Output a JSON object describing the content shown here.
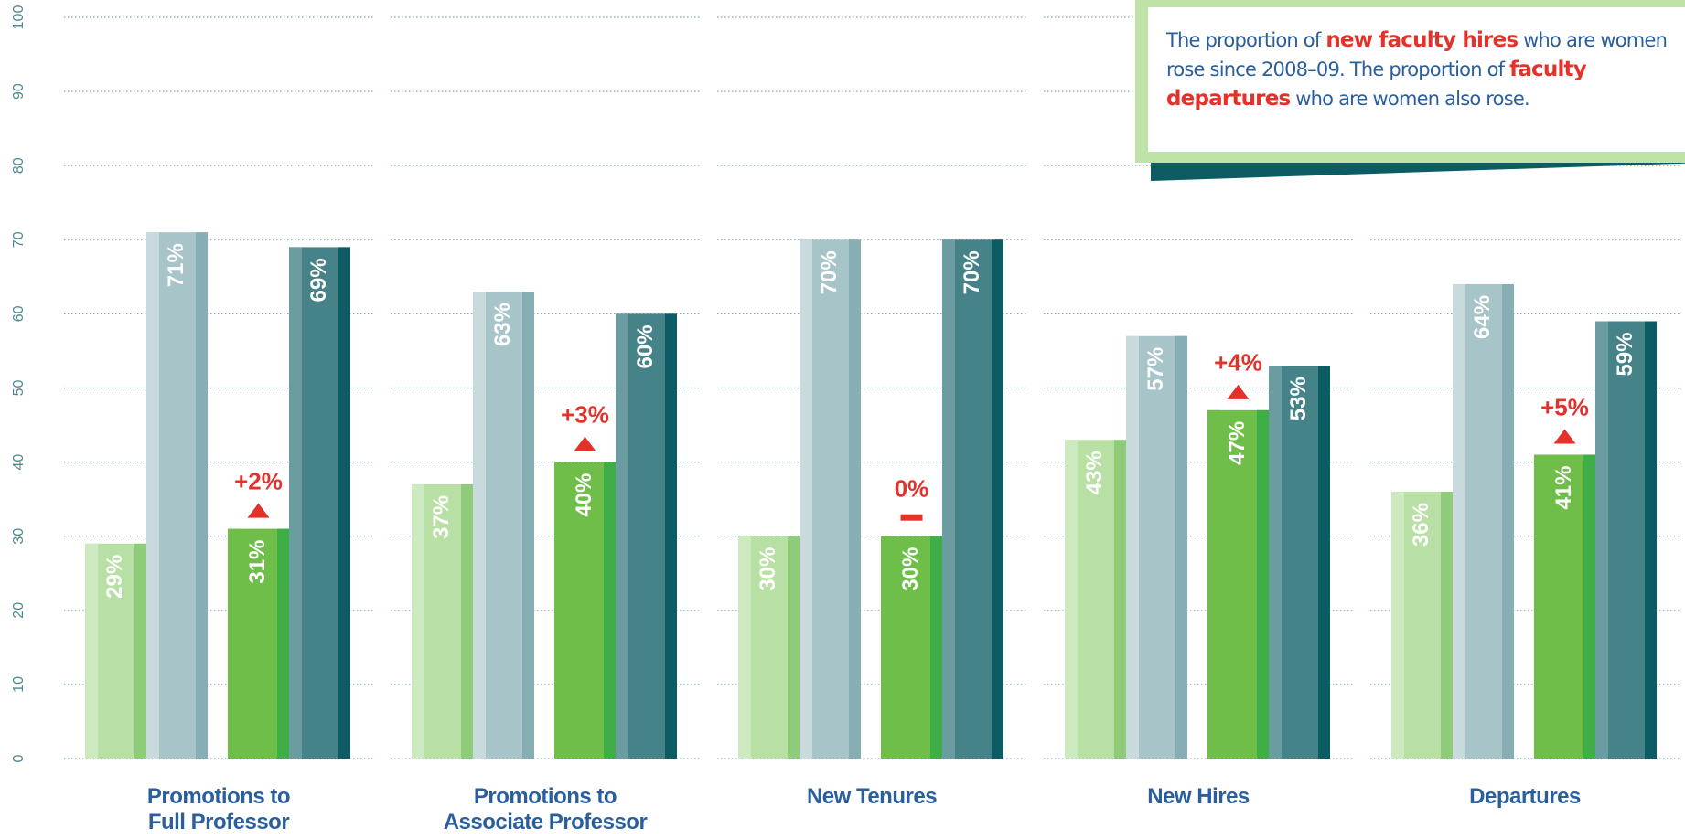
{
  "chart_data": {
    "type": "bar",
    "categories": [
      "Promotions to\nFull Professor",
      "Promotions to\nAssociate Professor",
      "New Tenures",
      "New Hires",
      "Departures"
    ],
    "series": [
      {
        "color": "#b8e0a5",
        "values": [
          29,
          37,
          30,
          43,
          36
        ],
        "value_labels": [
          "29%",
          "37%",
          "30%",
          "43%",
          "36%"
        ]
      },
      {
        "color": "#a7c4c8",
        "values": [
          71,
          63,
          70,
          57,
          64
        ],
        "value_labels": [
          "71%",
          "63%",
          "70%",
          "57%",
          "64%"
        ]
      },
      {
        "color": "#6fbe4a",
        "values": [
          31,
          40,
          30,
          47,
          41
        ],
        "value_labels": [
          "31%",
          "40%",
          "30%",
          "47%",
          "41%"
        ]
      },
      {
        "color": "#468389",
        "values": [
          69,
          60,
          70,
          53,
          59
        ],
        "value_labels": [
          "69%",
          "60%",
          "70%",
          "53%",
          "59%"
        ]
      }
    ],
    "changes": {
      "color": "#e4322b",
      "values": [
        2,
        3,
        0,
        4,
        5
      ],
      "value_labels": [
        "+2%",
        "+3%",
        "0%",
        "+4%",
        "+5%"
      ]
    },
    "ylim": [
      0,
      100
    ],
    "yticks": [
      0,
      10,
      20,
      30,
      40,
      50,
      60,
      70,
      80,
      90,
      100
    ],
    "grid": true,
    "callout": [
      "The proportion of ",
      "new faculty hires",
      " who are women rose since 2008–09. The proportion of ",
      "faculty departures",
      " who are women also rose."
    ]
  }
}
